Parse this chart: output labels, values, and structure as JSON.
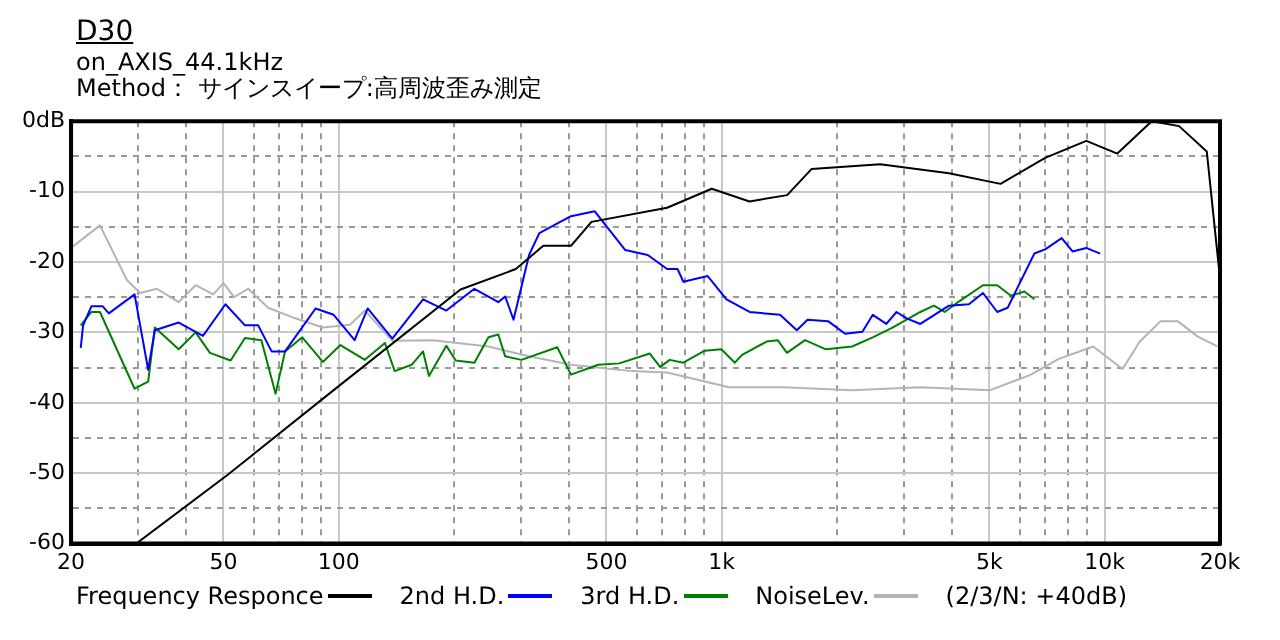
{
  "chart_data": {
    "type": "line",
    "title": "D30",
    "subtitle": "on_AXIS_44.1kHz",
    "annotations": [
      "Method： サインスイープ:高周波歪み測定",
      "(2/3/N: +40dB)"
    ],
    "xlim": [
      20,
      20000
    ],
    "ylim": [
      -60,
      0
    ],
    "log": "x",
    "grid": true,
    "legend": "bottom",
    "marker": "none",
    "line_style": "solid",
    "xticks": [
      20,
      {
        "value": 30,
        "label": null
      },
      {
        "value": 40,
        "label": null
      },
      50,
      {
        "value": 60,
        "label": null
      },
      {
        "value": 70,
        "label": null
      },
      {
        "value": 80,
        "label": null
      },
      {
        "value": 90,
        "label": null
      },
      100,
      {
        "value": 200,
        "label": null
      },
      {
        "value": 300,
        "label": null
      },
      {
        "value": 400,
        "label": null
      },
      500,
      {
        "value": 600,
        "label": null
      },
      {
        "value": 700,
        "label": null
      },
      {
        "value": 800,
        "label": null
      },
      {
        "value": 900,
        "label": null
      },
      {
        "value": 1000,
        "label": "1k"
      },
      {
        "value": 2000,
        "label": null
      },
      {
        "value": 3000,
        "label": null
      },
      {
        "value": 4000,
        "label": null
      },
      {
        "value": 5000,
        "label": "5k"
      },
      {
        "value": 6000,
        "label": null
      },
      {
        "value": 7000,
        "label": null
      },
      {
        "value": 8000,
        "label": null
      },
      {
        "value": 9000,
        "label": null
      },
      {
        "value": 10000,
        "label": "10k"
      },
      {
        "value": 20000,
        "label": "20k"
      }
    ],
    "yticks": [
      -60,
      {
        "value": -55,
        "label": null
      },
      -50,
      {
        "value": -45,
        "label": null
      },
      -40,
      {
        "value": -35,
        "label": null
      },
      -30,
      {
        "value": -25,
        "label": null
      },
      -20,
      {
        "value": -15,
        "label": null
      },
      -10,
      {
        "value": -5,
        "label": null
      },
      {
        "value": 0,
        "label": "0dB"
      }
    ],
    "series": [
      {
        "name": "Frequency Responce",
        "color": "#000000",
        "x": [
          29.6,
          51.1,
          97,
          208,
          290,
          342,
          404,
          457,
          720,
          942,
          1182,
          1482,
          1715,
          2593,
          3920,
          5346,
          6990,
          8953,
          10790,
          13270,
          15640,
          18470,
          19900,
          20000
        ],
        "values": [
          -60,
          -50.3,
          -38.2,
          -23.9,
          -21,
          -17.7,
          -17.7,
          -14.3,
          -12.3,
          -9.6,
          -11.4,
          -10.5,
          -6.8,
          -6.1,
          -7.4,
          -8.9,
          -5.2,
          -2.8,
          -4.6,
          0,
          -0.7,
          -4.3,
          -21.2,
          -35
        ]
      },
      {
        "name": "2nd H.D.",
        "color": "#0000ff",
        "x": [
          21.2,
          21.5,
          22.6,
          24.2,
          25.1,
          29.3,
          31.8,
          33.1,
          38.2,
          44.2,
          50.6,
          56.9,
          61.6,
          66.8,
          72.4,
          87,
          97,
          110,
          119,
          138,
          166,
          191,
          226,
          261,
          272,
          286,
          314,
          334,
          404,
          466,
          560,
          641,
          720,
          767,
          794,
          919,
          1029,
          1182,
          1420,
          1571,
          1675,
          1895,
          2100,
          2330,
          2480,
          2690,
          2860,
          3040,
          3300,
          3920,
          4420,
          4810,
          5240,
          5580,
          6550,
          6990,
          7720,
          8240,
          8950,
          9730
        ],
        "values": [
          -32.2,
          -29,
          -26.3,
          -26.3,
          -27.3,
          -24.6,
          -35.3,
          -29.7,
          -28.6,
          -30.5,
          -26,
          -29,
          -29,
          -32.7,
          -32.7,
          -26.6,
          -27.5,
          -31.1,
          -26.6,
          -30.9,
          -25.3,
          -26.9,
          -23.8,
          -25.7,
          -24.9,
          -28.2,
          -19,
          -15.9,
          -13.5,
          -12.8,
          -18.3,
          -19,
          -21,
          -21,
          -22.8,
          -22,
          -25.3,
          -27.1,
          -27.5,
          -29.7,
          -28.2,
          -28.4,
          -30.2,
          -29.9,
          -27.5,
          -28.8,
          -27.1,
          -28,
          -28.8,
          -26.2,
          -26,
          -24.4,
          -27.1,
          -26.5,
          -18.8,
          -18.2,
          -16.6,
          -18.5,
          -18,
          -18.8
        ]
      },
      {
        "name": "3rd H.D.",
        "color": "#008000",
        "x": [
          21.2,
          22.6,
          23.8,
          29.3,
          31.8,
          33.1,
          38.2,
          42.3,
          46.1,
          52.2,
          56.9,
          62.8,
          68.4,
          72.4,
          80.3,
          90.9,
          101,
          117,
          132,
          140,
          155,
          166,
          172,
          191,
          202,
          226,
          246,
          261,
          272,
          300,
          372,
          404,
          476,
          540,
          649,
          690,
          732,
          794,
          903,
          998,
          1082,
          1130,
          1310,
          1400,
          1480,
          1650,
          1870,
          2190,
          2480,
          2800,
          3300,
          3580,
          3820,
          4140,
          4810,
          5240,
          5690,
          6170,
          6550
        ],
        "values": [
          -29,
          -27.1,
          -27.1,
          -38,
          -37,
          -29.3,
          -32.4,
          -30,
          -32.9,
          -34,
          -30.8,
          -31.1,
          -38.7,
          -32.7,
          -30.7,
          -34.2,
          -31.8,
          -33.9,
          -31.5,
          -35.5,
          -34.6,
          -32.7,
          -36.2,
          -31.9,
          -34,
          -34.3,
          -30.7,
          -30.3,
          -33.4,
          -33.9,
          -32.1,
          -36,
          -34.6,
          -34.4,
          -33,
          -34.9,
          -33.9,
          -34.3,
          -32.6,
          -32.4,
          -34.3,
          -33.2,
          -31.3,
          -31.1,
          -32.9,
          -31.1,
          -32.4,
          -32,
          -30.7,
          -29.3,
          -27.1,
          -26.2,
          -27.1,
          -25.7,
          -23.3,
          -23.3,
          -24.8,
          -24.2,
          -25.3
        ]
      },
      {
        "name": "NoiseLev.",
        "color": "#b4b4b4",
        "x": [
          20,
          23.8,
          28,
          30.3,
          33.5,
          38.2,
          42.3,
          47,
          50,
          53.3,
          58,
          65.4,
          77,
          90.9,
          107,
          117,
          138,
          176,
          246,
          314,
          404,
          583,
          720,
          1045,
          1450,
          2190,
          3300,
          5020,
          6420,
          7560,
          9330,
          11130,
          12350,
          14000,
          15500,
          17500,
          19700
        ],
        "values": [
          -18,
          -14.8,
          -22.6,
          -24.4,
          -23.8,
          -25.7,
          -23.3,
          -24.6,
          -23,
          -25,
          -23.8,
          -26.5,
          -28,
          -29.3,
          -28.9,
          -26.9,
          -31.2,
          -31.1,
          -32,
          -33.4,
          -34.6,
          -35.5,
          -35.7,
          -37.8,
          -37.8,
          -38.2,
          -37.8,
          -38.2,
          -36,
          -33.8,
          -32,
          -35.2,
          -31.3,
          -28.4,
          -28.4,
          -30.6,
          -32
        ]
      }
    ]
  }
}
